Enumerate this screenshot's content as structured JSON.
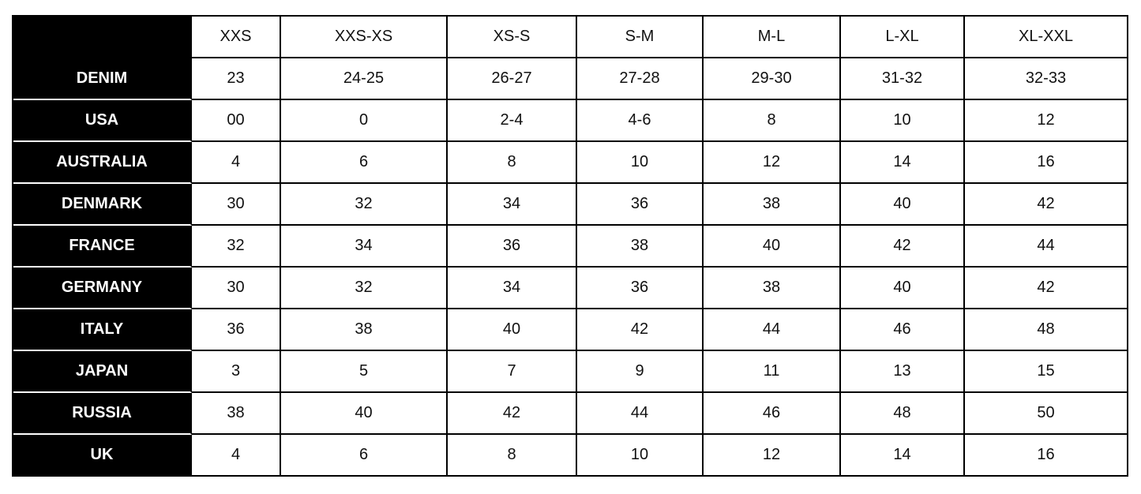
{
  "table": {
    "columns": [
      "XXS",
      "XXS-XS",
      "XS-S",
      "S-M",
      "M-L",
      "L-XL",
      "XL-XXL"
    ],
    "rows": [
      {
        "label": "DENIM",
        "values": [
          "23",
          "24-25",
          "26-27",
          "27-28",
          "29-30",
          "31-32",
          "32-33"
        ]
      },
      {
        "label": "USA",
        "values": [
          "00",
          "0",
          "2-4",
          "4-6",
          "8",
          "10",
          "12"
        ]
      },
      {
        "label": "AUSTRALIA",
        "values": [
          "4",
          "6",
          "8",
          "10",
          "12",
          "14",
          "16"
        ]
      },
      {
        "label": "DENMARK",
        "values": [
          "30",
          "32",
          "34",
          "36",
          "38",
          "40",
          "42"
        ]
      },
      {
        "label": "FRANCE",
        "values": [
          "32",
          "34",
          "36",
          "38",
          "40",
          "42",
          "44"
        ]
      },
      {
        "label": "GERMANY",
        "values": [
          "30",
          "32",
          "34",
          "36",
          "38",
          "40",
          "42"
        ]
      },
      {
        "label": "ITALY",
        "values": [
          "36",
          "38",
          "40",
          "42",
          "44",
          "46",
          "48"
        ]
      },
      {
        "label": "JAPAN",
        "values": [
          "3",
          "5",
          "7",
          "9",
          "11",
          "13",
          "15"
        ]
      },
      {
        "label": "RUSSIA",
        "values": [
          "38",
          "40",
          "42",
          "44",
          "46",
          "48",
          "50"
        ]
      },
      {
        "label": "UK",
        "values": [
          "4",
          "6",
          "8",
          "10",
          "12",
          "14",
          "16"
        ]
      }
    ]
  }
}
